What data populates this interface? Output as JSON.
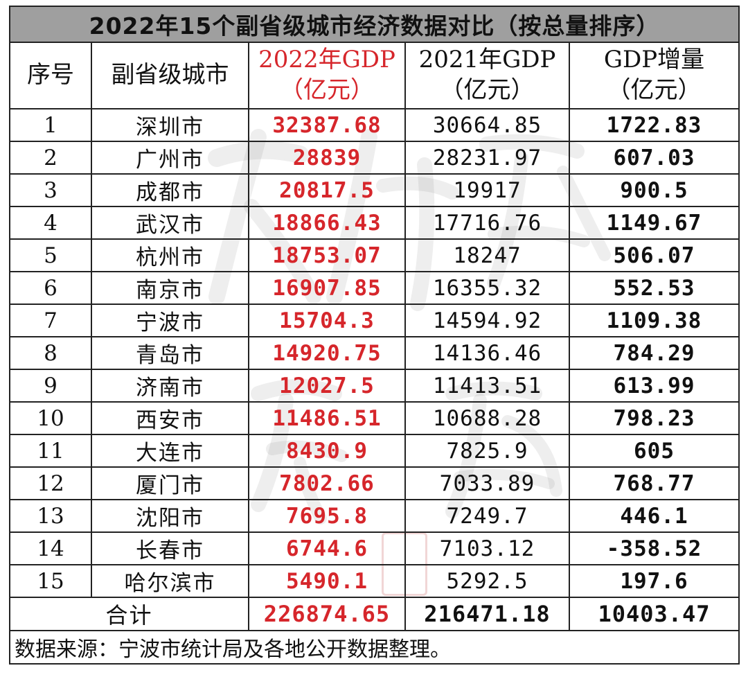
{
  "title": "2022年15个副省级城市经济数据对比（按总量排序）",
  "headers": {
    "rank": "序号",
    "city": "副省级城市",
    "gdp2022_line1": "2022年GDP",
    "gdp2022_line2": "（亿元）",
    "gdp2021_line1": "2021年GDP",
    "gdp2021_line2": "（亿元）",
    "increase_line1": "GDP增量",
    "increase_line2": "（亿元）"
  },
  "rows": [
    {
      "rank": "1",
      "city": "深圳市",
      "gdp2022": "32387.68",
      "gdp2021": "30664.85",
      "increase": "1722.83"
    },
    {
      "rank": "2",
      "city": "广州市",
      "gdp2022": "28839",
      "gdp2021": "28231.97",
      "increase": "607.03"
    },
    {
      "rank": "3",
      "city": "成都市",
      "gdp2022": "20817.5",
      "gdp2021": "19917",
      "increase": "900.5"
    },
    {
      "rank": "4",
      "city": "武汉市",
      "gdp2022": "18866.43",
      "gdp2021": "17716.76",
      "increase": "1149.67"
    },
    {
      "rank": "5",
      "city": "杭州市",
      "gdp2022": "18753.07",
      "gdp2021": "18247",
      "increase": "506.07"
    },
    {
      "rank": "6",
      "city": "南京市",
      "gdp2022": "16907.85",
      "gdp2021": "16355.32",
      "increase": "552.53"
    },
    {
      "rank": "7",
      "city": "宁波市",
      "gdp2022": "15704.3",
      "gdp2021": "14594.92",
      "increase": "1109.38"
    },
    {
      "rank": "8",
      "city": "青岛市",
      "gdp2022": "14920.75",
      "gdp2021": "14136.46",
      "increase": "784.29"
    },
    {
      "rank": "9",
      "city": "济南市",
      "gdp2022": "12027.5",
      "gdp2021": "11413.51",
      "increase": "613.99"
    },
    {
      "rank": "10",
      "city": "西安市",
      "gdp2022": "11486.51",
      "gdp2021": "10688.28",
      "increase": "798.23"
    },
    {
      "rank": "11",
      "city": "大连市",
      "gdp2022": "8430.9",
      "gdp2021": "7825.9",
      "increase": "605"
    },
    {
      "rank": "12",
      "city": "厦门市",
      "gdp2022": "7802.66",
      "gdp2021": "7033.89",
      "increase": "768.77"
    },
    {
      "rank": "13",
      "city": "沈阳市",
      "gdp2022": "7695.8",
      "gdp2021": "7249.7",
      "increase": "446.1"
    },
    {
      "rank": "14",
      "city": "长春市",
      "gdp2022": "6744.6",
      "gdp2021": "7103.12",
      "increase": "-358.52"
    },
    {
      "rank": "15",
      "city": "哈尔滨市",
      "gdp2022": "5490.1",
      "gdp2021": "5292.5",
      "increase": "197.6"
    }
  ],
  "total": {
    "label": "合计",
    "gdp2022": "226874.65",
    "gdp2021": "216471.18",
    "increase": "10403.47"
  },
  "source": "数据来源：宁波市统计局及各地公开数据整理。",
  "colors": {
    "title_bg": "#9f9f9f",
    "highlight_red": "#d6262b",
    "border": "#222222"
  },
  "watermark_icon": "calligraphy-watermark-icon",
  "stamp_icon": "red-seal-stamp-icon"
}
